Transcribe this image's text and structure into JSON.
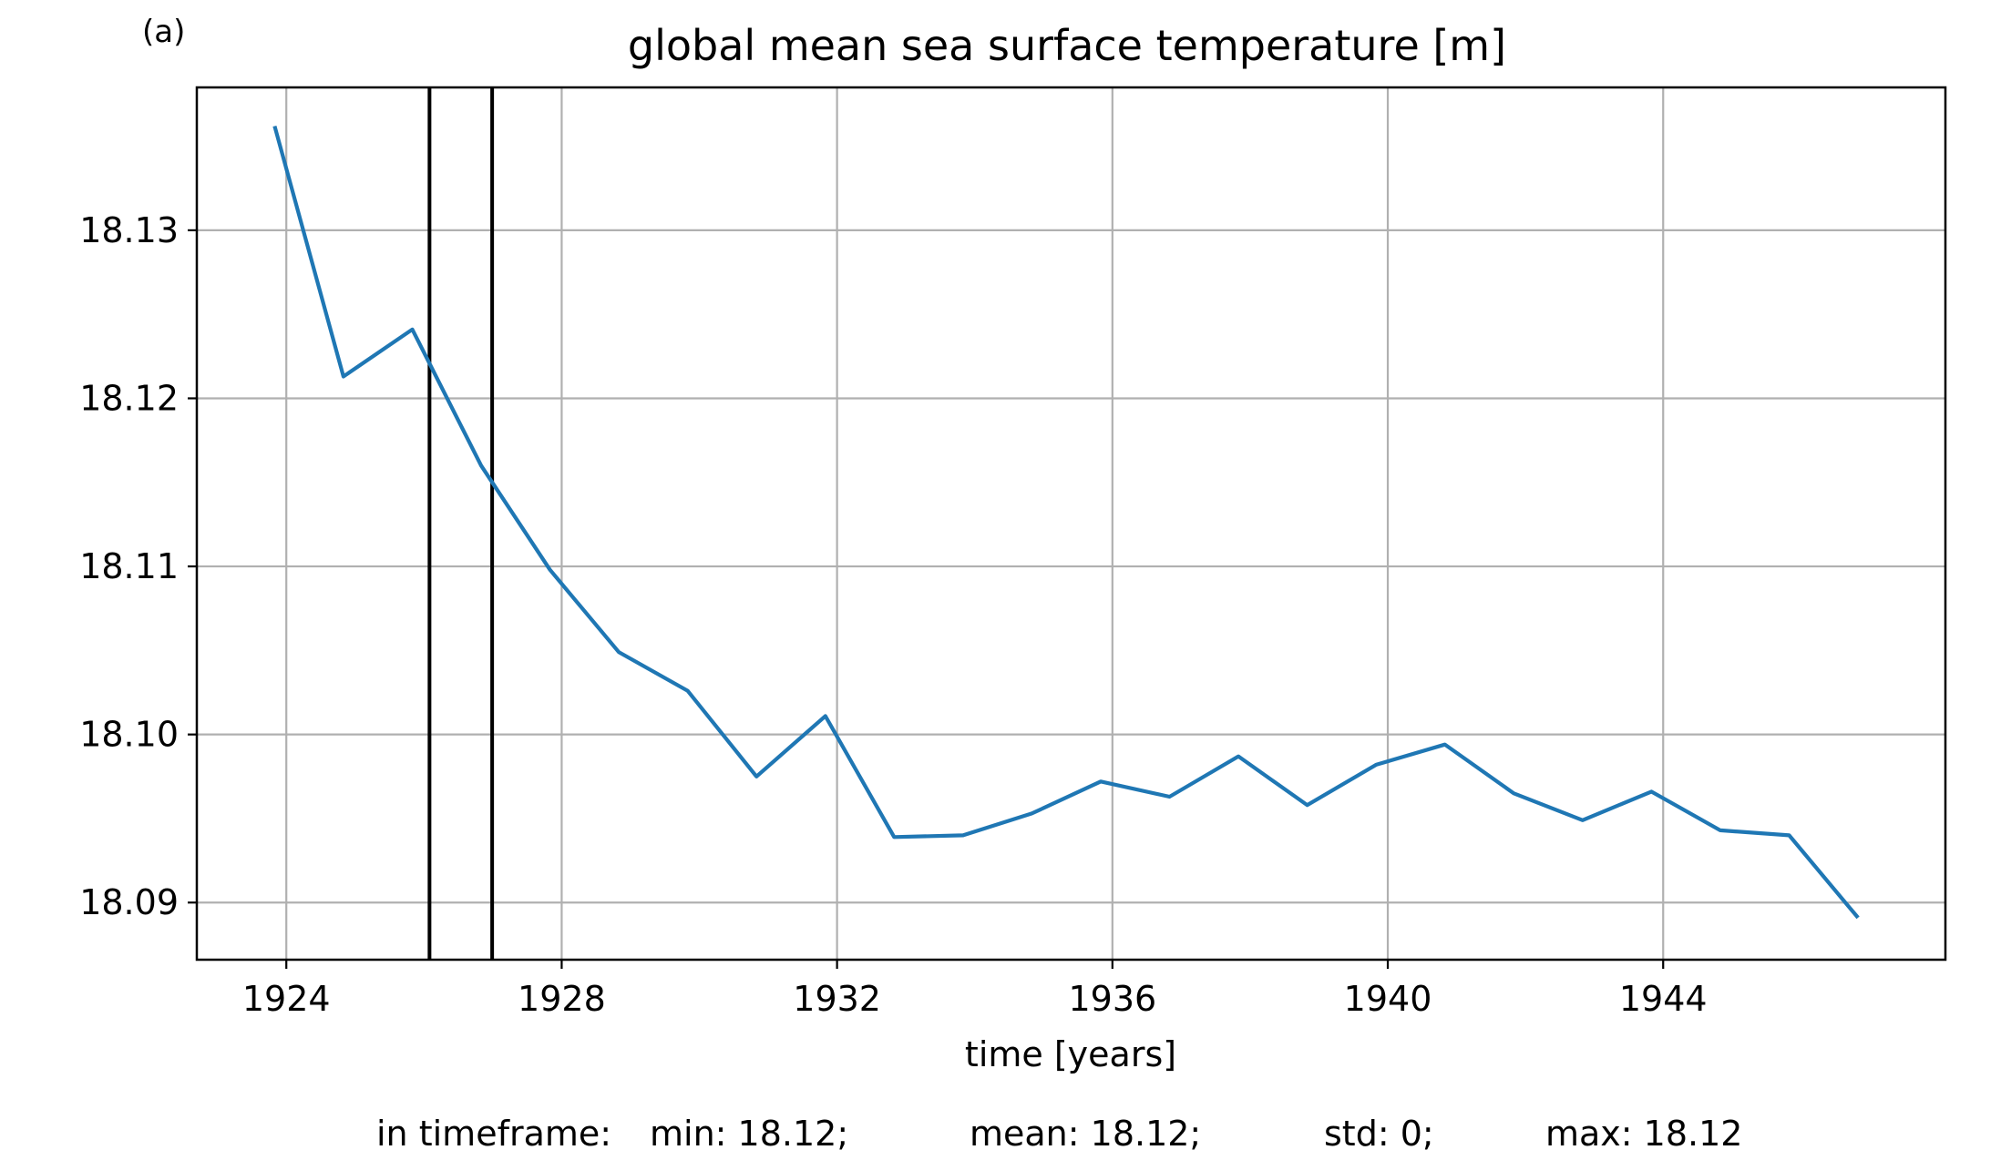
{
  "panel_label": "(a)",
  "chart_data": {
    "type": "line",
    "title": "global mean sea surface temperature [m]",
    "xlabel": "time [years]",
    "ylabel": "",
    "x_ticks": [
      1924,
      1928,
      1932,
      1936,
      1940,
      1944
    ],
    "x_tick_labels": [
      "1924",
      "1928",
      "1932",
      "1936",
      "1940",
      "1944"
    ],
    "y_ticks": [
      18.09,
      18.1,
      18.11,
      18.12,
      18.13
    ],
    "y_tick_labels": [
      "18.09",
      "18.10",
      "18.11",
      "18.12",
      "18.13"
    ],
    "xlim": [
      1922.7,
      1948.1
    ],
    "ylim": [
      18.0866,
      18.1385
    ],
    "grid": true,
    "series": [
      {
        "color": "#1f77b4",
        "x": [
          1923.83,
          1924.83,
          1925.83,
          1926.83,
          1927.83,
          1928.83,
          1929.83,
          1930.83,
          1931.83,
          1932.83,
          1933.83,
          1934.83,
          1935.83,
          1936.83,
          1937.83,
          1938.83,
          1939.83,
          1940.83,
          1941.83,
          1942.83,
          1943.83,
          1944.83,
          1945.83,
          1946.83
        ],
        "y": [
          18.1362,
          18.1213,
          18.1241,
          18.116,
          18.1098,
          18.1049,
          18.1026,
          18.0975,
          18.1011,
          18.0939,
          18.094,
          18.0953,
          18.0972,
          18.0963,
          18.0987,
          18.0958,
          18.0982,
          18.0994,
          18.0965,
          18.0949,
          18.0966,
          18.0943,
          18.094,
          18.0891
        ]
      }
    ],
    "vertical_lines": [
      {
        "x": 1926.08,
        "color": "#000000"
      },
      {
        "x": 1926.99,
        "color": "#000000"
      }
    ],
    "stats": {
      "prefix": "in timeframe:",
      "min": "min: 18.12;",
      "mean": "mean: 18.12;",
      "std": "std: 0;",
      "max": "max: 18.12"
    }
  }
}
